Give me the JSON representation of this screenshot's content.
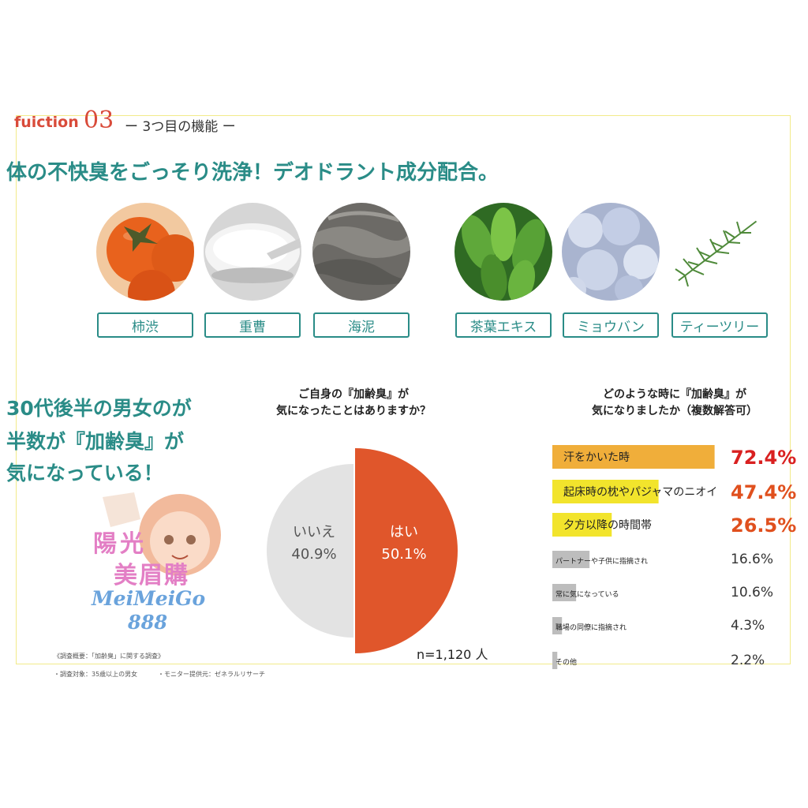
{
  "header": {
    "function_label": "fuiction",
    "function_number": "03",
    "function_subtitle": "ー 3つ目の機能 ー",
    "headline": "体の不快臭をごっそり洗浄！デオドラント成分配合。"
  },
  "ingredients": [
    {
      "label": "柿渋",
      "icon": "persimmon-image"
    },
    {
      "label": "重曹",
      "icon": "baking-soda-image"
    },
    {
      "label": "海泥",
      "icon": "sea-mud-image"
    },
    {
      "label": "茶葉エキス",
      "icon": "tea-leaf-image"
    },
    {
      "label": "ミョウバン",
      "icon": "alum-image"
    },
    {
      "label": "ティーツリー",
      "icon": "tea-tree-image"
    }
  ],
  "claim": {
    "line1": "30代後半の男女のが",
    "line2": "半数が『加齢臭』が",
    "line3": "気になっている！"
  },
  "watermark": {
    "cn_line1": "陽光",
    "cn_line2": "美眉購",
    "en_line1": "MeiMeiGo",
    "en_line2": "888"
  },
  "survey_notes": {
    "left1": "《調査概要：「加齢臭」に関する調査》",
    "left2": "・調査対象：35歳以上の男女",
    "right2": "・モニター提供元：ゼネラルリサーチ"
  },
  "colors": {
    "teal": "#2a8c87",
    "accent_red": "#d94b3a",
    "pie_yes": "#e0562b",
    "pie_no": "#e3e3e3",
    "bar_orange": "#f0ae3a",
    "bar_yellow": "#f2e42c",
    "bar_gray": "#bdbdbd"
  },
  "chart_data": [
    {
      "type": "pie",
      "title_line1": "ご自身の『加齢臭』が",
      "title_line2": "気になったことはありますか？",
      "note": "n=1,120 人",
      "slices": [
        {
          "label": "はい",
          "display": "50.1%",
          "value": 50.1
        },
        {
          "label": "いいえ",
          "display": "40.9%",
          "value": 40.9
        }
      ]
    },
    {
      "type": "bar",
      "orientation": "horizontal",
      "title_line1": "どのような時に『加齢臭』が",
      "title_line2": "気になりましたか（複数解答可）",
      "categories": [
        "汗をかいた時",
        "起床時の枕やパジャマのニオイ",
        "夕方以降の時間帯",
        "パートナーや子供に指摘され",
        "常に気になっている",
        "職場の同僚に指摘され",
        "その他"
      ],
      "values": [
        72.4,
        47.4,
        26.5,
        16.6,
        10.6,
        4.3,
        2.2
      ],
      "display": [
        "72.4%",
        "47.4%",
        "26.5%",
        "16.6%",
        "10.6%",
        "4.3%",
        "2.2%"
      ]
    }
  ]
}
